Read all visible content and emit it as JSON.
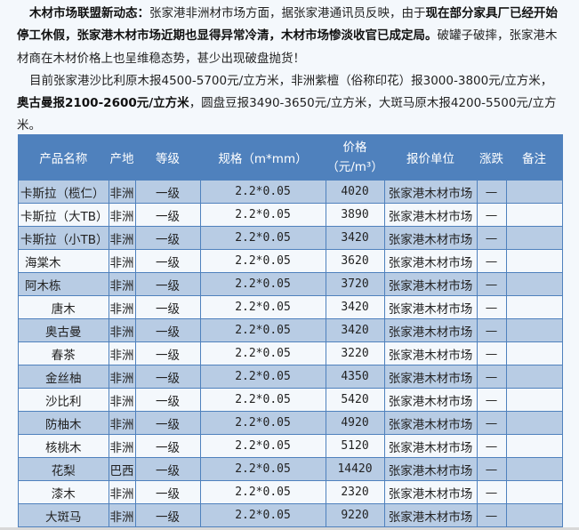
{
  "article": {
    "p1": [
      {
        "text": "木材市场联盟新动态：",
        "bold": true
      },
      {
        "text": "张家港非洲材市场方面，据张家港通讯员反映，由于",
        "bold": false
      },
      {
        "text": "现在部分家具厂已经开始停工休假，张家港木材市场近期也显得异常冷清，木材市场惨淡收官已成定局。",
        "bold": true
      },
      {
        "text": "破罐子破摔，张家港木材商在木材价格上也呈维稳态势，甚少出现破盘抛货！",
        "bold": false
      }
    ],
    "p2": [
      {
        "text": "目前张家港沙比利原木报4500-5700元/立方米，非洲紫檀（俗称印花）报3000-3800元/立方米，",
        "bold": false
      },
      {
        "text": "奥古曼报2100-2600元/立方米",
        "bold": true
      },
      {
        "text": "，圆盘豆报3490-3650元/立方米，大斑马原木报4200-5500元/立方米。",
        "bold": false
      }
    ]
  },
  "table": {
    "headers": [
      "产品名称",
      "产地",
      "等级",
      "规格（m*mm）",
      "价格",
      "（元/m³）",
      "报价单位",
      "涨跌",
      "备注"
    ],
    "rows": [
      {
        "name": "卡斯拉（榄仁）",
        "origin": "非洲",
        "grade": "一级",
        "spec": "2.2*0.05",
        "price": "4020",
        "unit": "张家港木材市场",
        "change": "—",
        "note": "",
        "align": "left"
      },
      {
        "name": "卡斯拉（大TB）",
        "origin": "非洲",
        "grade": "一级",
        "spec": "2.2*0.05",
        "price": "3890",
        "unit": "张家港木材市场",
        "change": "—",
        "note": "",
        "align": "left"
      },
      {
        "name": "卡斯拉（小TB）",
        "origin": "非洲",
        "grade": "一级",
        "spec": "2.2*0.05",
        "price": "3420",
        "unit": "张家港木材市场",
        "change": "—",
        "note": "",
        "align": "left"
      },
      {
        "name": "海棠木",
        "origin": "非洲",
        "grade": "一级",
        "spec": "2.2*0.05",
        "price": "3620",
        "unit": "张家港木材市场",
        "change": "—",
        "note": "",
        "align": "indent"
      },
      {
        "name": "阿木栋",
        "origin": "非洲",
        "grade": "一级",
        "spec": "2.2*0.05",
        "price": "3720",
        "unit": "张家港木材市场",
        "change": "—",
        "note": "",
        "align": "indent"
      },
      {
        "name": "唐木",
        "origin": "非洲",
        "grade": "一级",
        "spec": "2.2*0.05",
        "price": "3420",
        "unit": "张家港木材市场",
        "change": "—",
        "note": "",
        "align": "center"
      },
      {
        "name": "奥古曼",
        "origin": "非洲",
        "grade": "一级",
        "spec": "2.2*0.05",
        "price": "3420",
        "unit": "张家港木材市场",
        "change": "—",
        "note": "",
        "align": "center"
      },
      {
        "name": "春茶",
        "origin": "非洲",
        "grade": "一级",
        "spec": "2.2*0.05",
        "price": "3220",
        "unit": "张家港木材市场",
        "change": "—",
        "note": "",
        "align": "center"
      },
      {
        "name": "金丝柚",
        "origin": "非洲",
        "grade": "一级",
        "spec": "2.2*0.05",
        "price": "4350",
        "unit": "张家港木材市场",
        "change": "—",
        "note": "",
        "align": "center"
      },
      {
        "name": "沙比利",
        "origin": "非洲",
        "grade": "一级",
        "spec": "2.2*0.05",
        "price": "5420",
        "unit": "张家港木材市场",
        "change": "—",
        "note": "",
        "align": "center"
      },
      {
        "name": "防柚木",
        "origin": "非洲",
        "grade": "一级",
        "spec": "2.2*0.05",
        "price": "4920",
        "unit": "张家港木材市场",
        "change": "—",
        "note": "",
        "align": "center"
      },
      {
        "name": "核桃木",
        "origin": "非洲",
        "grade": "一级",
        "spec": "2.2*0.05",
        "price": "5120",
        "unit": "张家港木材市场",
        "change": "—",
        "note": "",
        "align": "center"
      },
      {
        "name": "花梨",
        "origin": "巴西",
        "grade": "一级",
        "spec": "2.2*0.05",
        "price": "14420",
        "unit": "张家港木材市场",
        "change": "—",
        "note": "",
        "align": "center"
      },
      {
        "name": "漆木",
        "origin": "非洲",
        "grade": "一级",
        "spec": "2.2*0.05",
        "price": "2320",
        "unit": "张家港木材市场",
        "change": "—",
        "note": "",
        "align": "center"
      },
      {
        "name": "大斑马",
        "origin": "非洲",
        "grade": "一级",
        "spec": "2.2*0.05",
        "price": "9220",
        "unit": "张家港木材市场",
        "change": "—",
        "note": "",
        "align": "center"
      }
    ]
  },
  "colors": {
    "header": "#4f81bd",
    "row_alt": "#b8cce4",
    "row": "#f4f8fc"
  }
}
